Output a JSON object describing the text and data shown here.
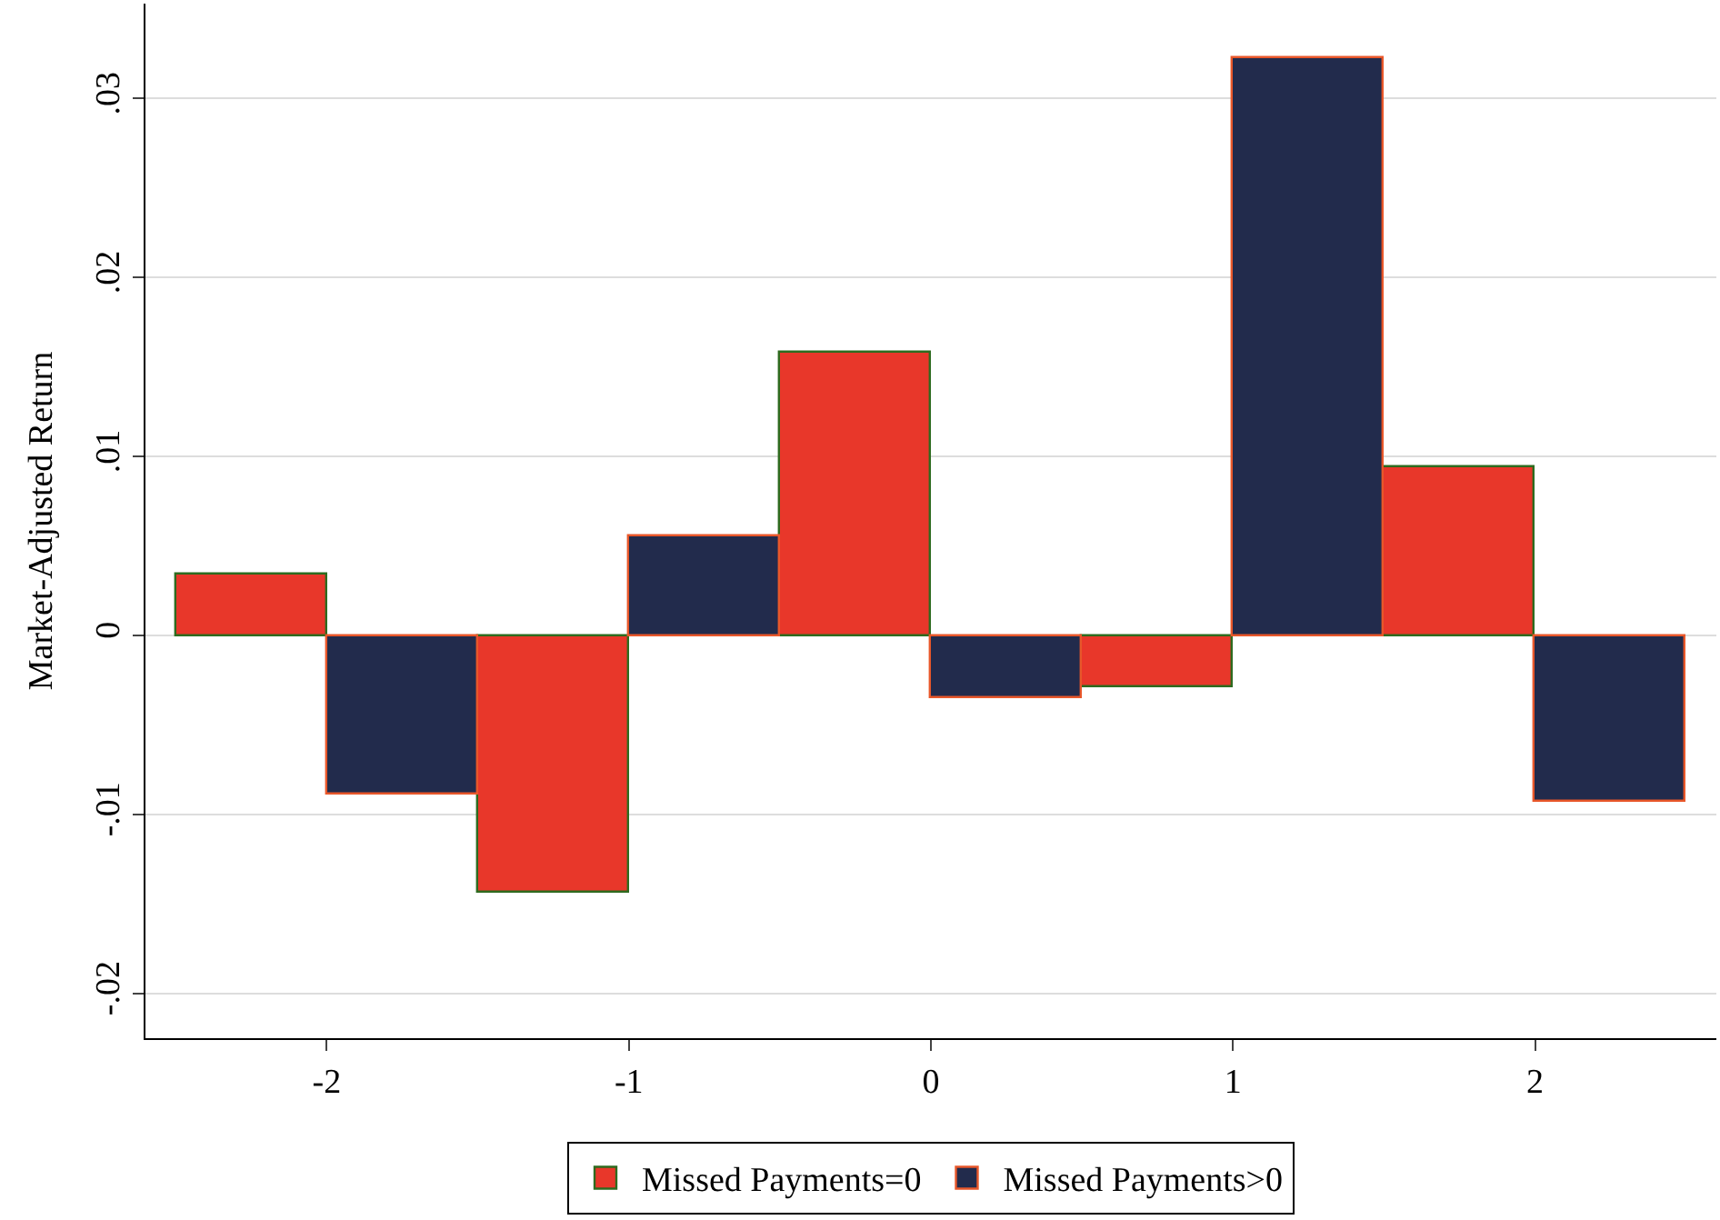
{
  "chart_data": {
    "type": "bar",
    "ylabel": "Market-Adjusted Return",
    "categories": [
      "-2",
      "-1",
      "0",
      "1",
      "2"
    ],
    "series": [
      {
        "name": "Missed Payments=0",
        "color": "#e8372a",
        "values": [
          0.0034,
          -0.0144,
          0.0158,
          -0.0029,
          0.0094
        ]
      },
      {
        "name": "Missed Payments>0",
        "color": "#222b4c",
        "values": [
          -0.0089,
          0.0055,
          -0.0035,
          0.0323,
          -0.0093
        ]
      }
    ],
    "ylim": [
      -0.0225,
      0.0353
    ],
    "yticks": [
      {
        "value": -0.02,
        "label": "-.02"
      },
      {
        "value": -0.01,
        "label": "-.01"
      },
      0,
      {
        "value": 0.01,
        "label": ".01"
      },
      {
        "value": 0.02,
        "label": ".02"
      },
      {
        "value": 0.03,
        "label": ".03"
      }
    ],
    "grid": "y",
    "legend": "bottom"
  }
}
